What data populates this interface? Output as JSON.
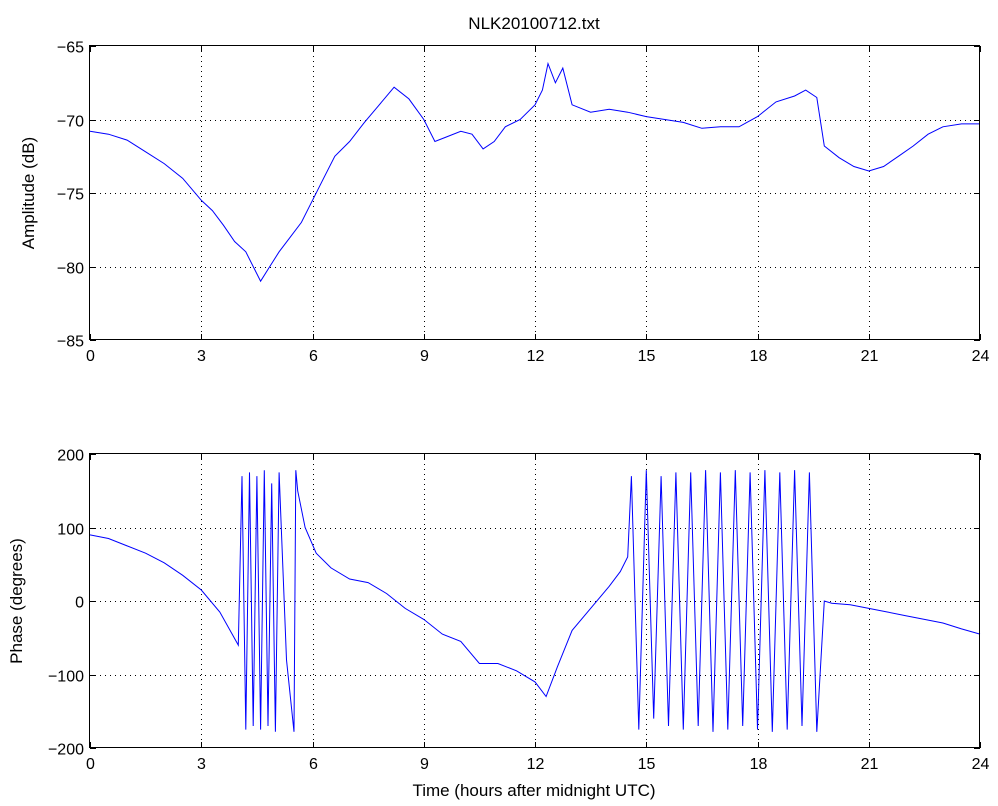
{
  "figure": {
    "title": "NLK20100712.txt",
    "xlabel": "Time (hours after midnight UTC)"
  },
  "chart_data": [
    {
      "type": "line",
      "title": "NLK20100712.txt",
      "xlabel": "",
      "ylabel": "Amplitude (dB)",
      "xlim": [
        0,
        24
      ],
      "ylim": [
        -85,
        -65
      ],
      "xticks": [
        0,
        3,
        6,
        9,
        12,
        15,
        18,
        21,
        24
      ],
      "yticks": [
        -85,
        -80,
        -75,
        -70,
        -65
      ],
      "grid": true,
      "color": "#0000ff",
      "series": [
        {
          "x": [
            0,
            0.5,
            1,
            1.5,
            2,
            2.5,
            3,
            3.3,
            3.6,
            3.9,
            4.2,
            4.5,
            4.6,
            4.8,
            5.1,
            5.4,
            5.7,
            6,
            6.3,
            6.6,
            7,
            7.4,
            7.8,
            8.2,
            8.6,
            9,
            9.3,
            9.6,
            10,
            10.3,
            10.6,
            10.9,
            11.2,
            11.6,
            12,
            12.2,
            12.35,
            12.55,
            12.75,
            13,
            13.5,
            14,
            14.5,
            15,
            15.5,
            16,
            16.5,
            17,
            17.5,
            18,
            18.5,
            19,
            19.3,
            19.6,
            19.8,
            20.2,
            20.6,
            21,
            21.4,
            21.8,
            22.2,
            22.6,
            23,
            23.5,
            24
          ],
          "y": [
            -70.8,
            -71.0,
            -71.4,
            -72.2,
            -73.0,
            -74.0,
            -75.5,
            -76.2,
            -77.2,
            -78.3,
            -79.0,
            -80.5,
            -81.0,
            -80.2,
            -79.0,
            -78.0,
            -77.0,
            -75.5,
            -74.0,
            -72.5,
            -71.5,
            -70.2,
            -69.0,
            -67.8,
            -68.6,
            -70.0,
            -71.5,
            -71.2,
            -70.8,
            -71.0,
            -72.0,
            -71.5,
            -70.5,
            -70.0,
            -69.0,
            -68.0,
            -66.2,
            -67.5,
            -66.5,
            -69.0,
            -69.5,
            -69.3,
            -69.5,
            -69.8,
            -70.0,
            -70.2,
            -70.6,
            -70.5,
            -70.5,
            -69.8,
            -68.8,
            -68.4,
            -68.0,
            -68.5,
            -71.8,
            -72.6,
            -73.2,
            -73.5,
            -73.2,
            -72.5,
            -71.8,
            -71.0,
            -70.5,
            -70.3,
            -70.3
          ]
        }
      ]
    },
    {
      "type": "line",
      "title": "",
      "xlabel": "Time (hours after midnight UTC)",
      "ylabel": "Phase (degrees)",
      "xlim": [
        0,
        24
      ],
      "ylim": [
        -200,
        200
      ],
      "xticks": [
        0,
        3,
        6,
        9,
        12,
        15,
        18,
        21,
        24
      ],
      "yticks": [
        -200,
        -100,
        0,
        100,
        200
      ],
      "grid": true,
      "color": "#0000ff",
      "series": [
        {
          "x": [
            0,
            0.5,
            1,
            1.5,
            2,
            2.5,
            3,
            3.5,
            4,
            4.1,
            4.2,
            4.3,
            4.4,
            4.5,
            4.6,
            4.7,
            4.8,
            4.9,
            5.0,
            5.1,
            5.3,
            5.5,
            5.55,
            5.6,
            5.8,
            6.1,
            6.5,
            7,
            7.5,
            8,
            8.5,
            9,
            9.5,
            10,
            10.5,
            11,
            11.5,
            12,
            12.3,
            12.6,
            13,
            13.5,
            14,
            14.3,
            14.5,
            14.6,
            14.8,
            15.0,
            15.2,
            15.4,
            15.6,
            15.8,
            16.0,
            16.2,
            16.4,
            16.6,
            16.8,
            17.0,
            17.2,
            17.4,
            17.6,
            17.8,
            18.0,
            18.2,
            18.4,
            18.6,
            18.8,
            19.0,
            19.2,
            19.4,
            19.6,
            19.8,
            20,
            20.5,
            21,
            21.5,
            22,
            22.5,
            23,
            23.5,
            24
          ],
          "y": [
            90,
            85,
            75,
            65,
            52,
            35,
            15,
            -15,
            -60,
            170,
            -175,
            175,
            -170,
            170,
            -175,
            178,
            -170,
            160,
            -178,
            175,
            -80,
            -178,
            178,
            150,
            100,
            65,
            45,
            30,
            25,
            10,
            -10,
            -25,
            -45,
            -55,
            -85,
            -85,
            -95,
            -110,
            -130,
            -90,
            -40,
            -10,
            20,
            40,
            60,
            170,
            -175,
            178,
            -160,
            170,
            -170,
            175,
            -175,
            175,
            -170,
            178,
            -178,
            175,
            -175,
            178,
            -170,
            175,
            -175,
            178,
            -178,
            175,
            -175,
            178,
            -170,
            175,
            -178,
            0,
            -3,
            -5,
            -10,
            -15,
            -20,
            -25,
            -30,
            -38,
            -45
          ]
        }
      ]
    }
  ]
}
